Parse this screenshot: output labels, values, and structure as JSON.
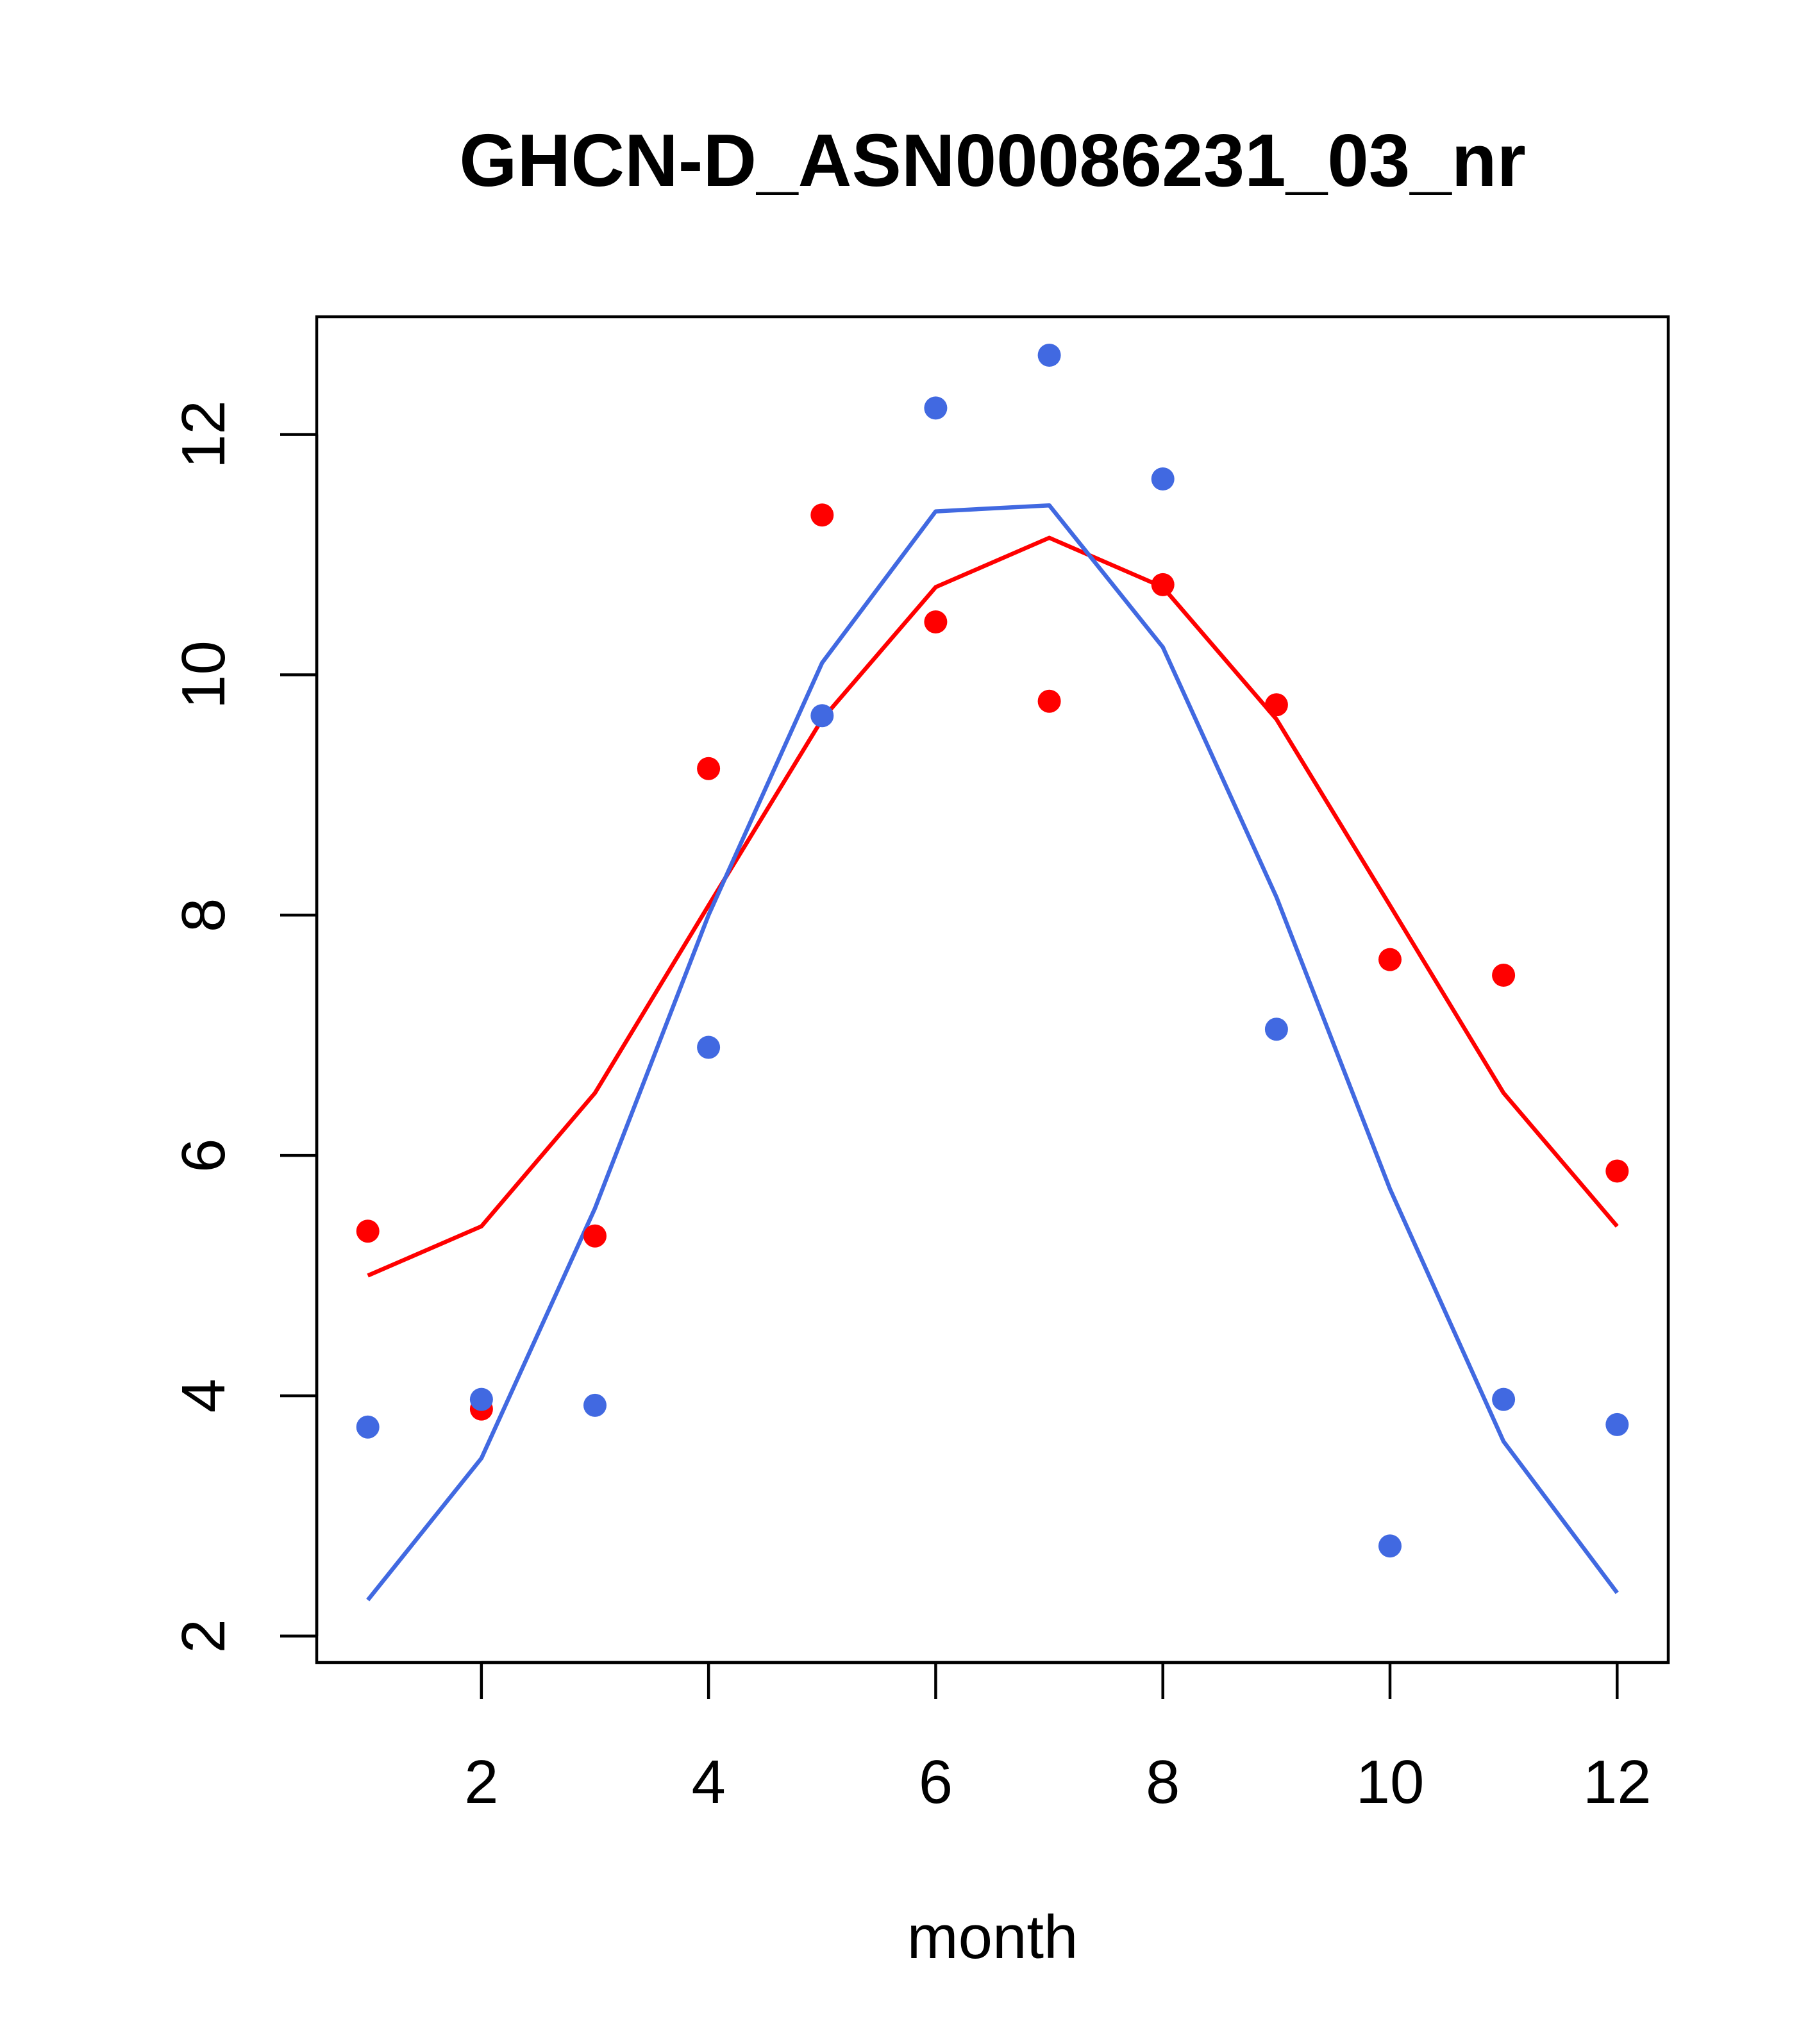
{
  "chart_data": {
    "type": "scatter",
    "title": "GHCN-D_ASN00086231_03_nr",
    "xlabel": "month",
    "ylabel": "",
    "xlim": [
      0.55,
      12.45
    ],
    "ylim": [
      1.78,
      12.98
    ],
    "xticks": [
      2,
      4,
      6,
      8,
      10,
      12
    ],
    "yticks": [
      2,
      4,
      6,
      8,
      10,
      12
    ],
    "grid": false,
    "legend": "none",
    "series": [
      {
        "color": "#ff0000",
        "points_x": [
          1,
          2,
          3,
          4,
          5,
          6,
          7,
          8,
          9,
          10,
          11,
          12
        ],
        "points_y": [
          5.37,
          3.89,
          5.33,
          9.22,
          11.33,
          10.44,
          9.78,
          10.75,
          9.75,
          7.63,
          7.5,
          5.87
        ],
        "line_x": [
          1,
          2,
          3,
          4,
          5,
          6,
          7,
          8,
          9,
          10,
          11,
          12
        ],
        "line_y": [
          5.0,
          5.41,
          6.52,
          8.08,
          9.63,
          10.73,
          11.14,
          10.73,
          9.63,
          8.08,
          6.52,
          5.41
        ]
      },
      {
        "color": "#4169e1",
        "points_x": [
          1,
          2,
          3,
          4,
          5,
          6,
          7,
          8,
          9,
          10,
          11,
          12
        ],
        "points_y": [
          3.74,
          3.97,
          3.92,
          6.9,
          9.66,
          12.22,
          12.66,
          11.63,
          7.05,
          2.75,
          3.97,
          3.76
        ],
        "line_x": [
          1,
          2,
          3,
          4,
          5,
          6,
          7,
          8,
          9,
          10,
          11,
          12
        ],
        "line_y": [
          2.3,
          3.48,
          5.56,
          8.0,
          10.1,
          11.36,
          11.41,
          10.23,
          8.15,
          5.72,
          3.62,
          2.36
        ]
      }
    ]
  }
}
